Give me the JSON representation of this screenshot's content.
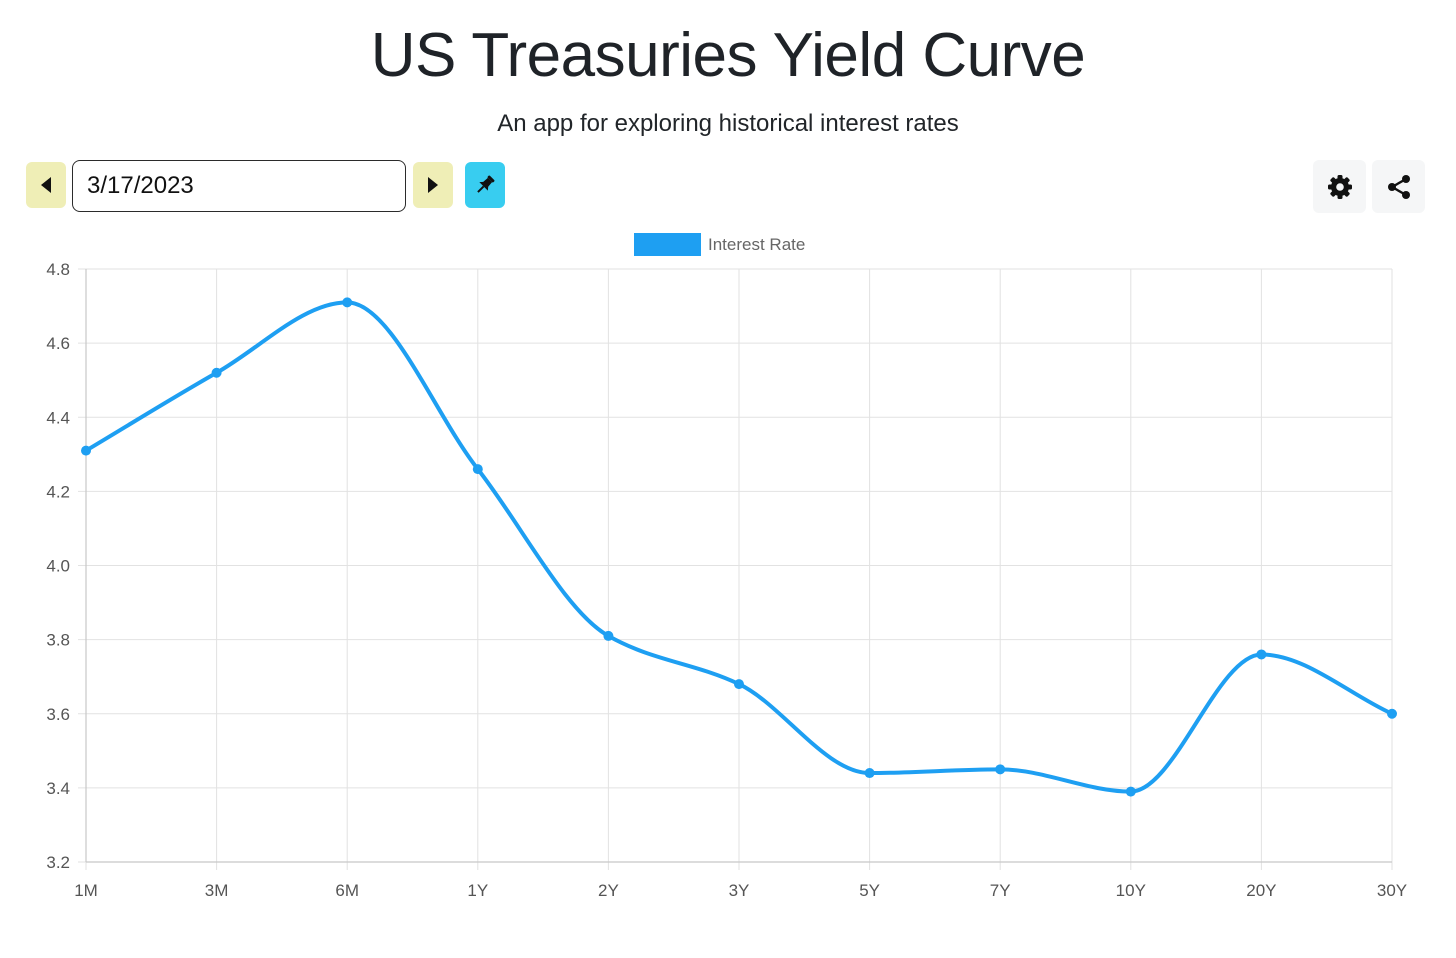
{
  "header": {
    "title": "US Treasuries Yield Curve",
    "subtitle": "An app for exploring historical interest rates"
  },
  "toolbar": {
    "date_value": "3/17/2023",
    "prev_icon": "caret-left-icon",
    "next_icon": "caret-right-icon",
    "pin_icon": "pin-icon",
    "settings_icon": "gear-icon",
    "share_icon": "share-icon"
  },
  "colors": {
    "accent": "#1e9ff2",
    "nav_button": "#efeeb6",
    "pin_button": "#38cdf0"
  },
  "chart_data": {
    "type": "line",
    "categories": [
      "1M",
      "3M",
      "6M",
      "1Y",
      "2Y",
      "3Y",
      "5Y",
      "7Y",
      "10Y",
      "20Y",
      "30Y"
    ],
    "series": [
      {
        "name": "Interest Rate",
        "values": [
          4.31,
          4.52,
          4.71,
          4.26,
          3.81,
          3.68,
          3.44,
          3.45,
          3.39,
          3.76,
          3.6
        ],
        "color": "#1e9ff2"
      }
    ],
    "yticks": [
      "3.2",
      "3.4",
      "3.6",
      "3.8",
      "4.0",
      "4.2",
      "4.4",
      "4.6",
      "4.8"
    ],
    "ylim": [
      3.2,
      4.8
    ],
    "grid": true,
    "legend": "top-center",
    "smooth": true
  }
}
